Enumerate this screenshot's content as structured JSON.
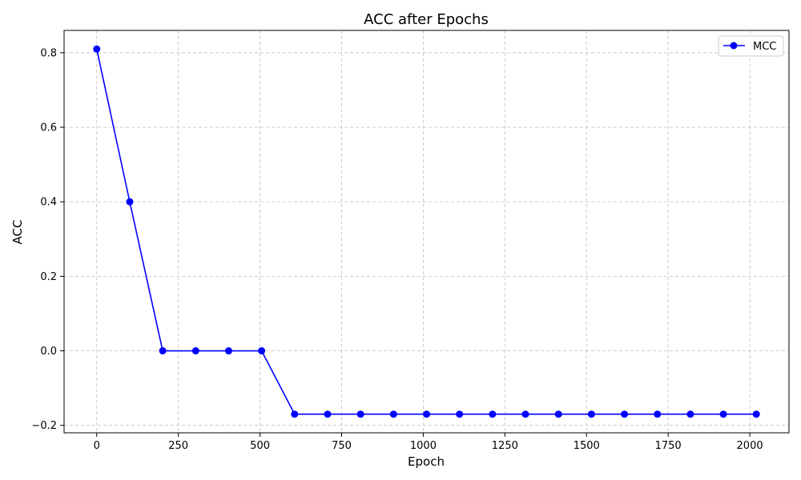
{
  "chart_data": {
    "type": "line",
    "title": "ACC after Epochs",
    "xlabel": "Epoch",
    "ylabel": "ACC",
    "xlim": [
      -100,
      2120
    ],
    "ylim": [
      -0.22,
      0.86
    ],
    "xticks": [
      0,
      250,
      500,
      750,
      1000,
      1250,
      1500,
      1750,
      2000
    ],
    "yticks": [
      -0.2,
      0.0,
      0.2,
      0.4,
      0.6,
      0.8
    ],
    "ytick_labels": [
      "−0.2",
      "0.0",
      "0.2",
      "0.4",
      "0.6",
      "0.8"
    ],
    "grid": true,
    "legend_position": "top-right",
    "series": [
      {
        "name": "MCC",
        "color": "#0000ff",
        "marker": "circle",
        "x": [
          0,
          101,
          202,
          303,
          404,
          505,
          606,
          707,
          808,
          909,
          1010,
          1111,
          1212,
          1313,
          1414,
          1515,
          1616,
          1717,
          1818,
          1919,
          2020
        ],
        "y": [
          0.81,
          0.4,
          0.0,
          0.0,
          0.0,
          0.0,
          -0.17,
          -0.17,
          -0.17,
          -0.17,
          -0.17,
          -0.17,
          -0.17,
          -0.17,
          -0.17,
          -0.17,
          -0.17,
          -0.17,
          -0.17,
          -0.17,
          -0.17
        ]
      }
    ]
  }
}
